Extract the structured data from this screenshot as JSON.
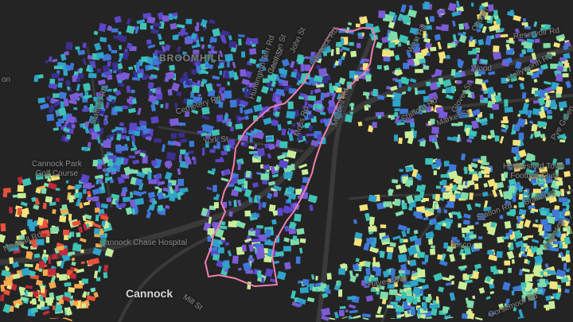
{
  "map": {
    "basemap": "dark",
    "boundary_color": "#f07fae",
    "color_ramp": [
      "#3b2f8f",
      "#5b47c9",
      "#7b5cd6",
      "#3f78d8",
      "#2fa3c8",
      "#3fc3b6",
      "#7fdcaa",
      "#c9ee9a",
      "#f6e27a",
      "#f9a94e",
      "#e8513a",
      "#c02a3a"
    ],
    "labels": {
      "broomhill": "BROOMHILL",
      "cannock": "Cannock",
      "cannock_park_golf": "Cannock Park\nGolf Course",
      "cannock_chase_hospital": "Cannock Chase Hospital",
      "hednesford_town": "Hednesford Town\nFootball Club",
      "tesco": "Tesco",
      "hayes_way": "Hayes Way",
      "wood_rd": "Wood",
      "reservoir_rd": "Reservoir Rd",
      "hollyworth_rd": "Hollyworth Rd",
      "church_st": "Church",
      "stafford_rd": "Stafford Rd",
      "cemetery_rd": "Cemetery Rd",
      "huntington_terr_rd": "Huntington Terr Rd",
      "marston_st": "Marston St",
      "john_st": "John St",
      "cecil_st": "Cecil St",
      "cannock_rd": "Cannock Rd",
      "moss_rd": "Moss Rd",
      "mitchell_rd": "Mitchell Rd",
      "york_st": "York St",
      "newhall_rd": "Newhall Rd",
      "mill_st": "Mill St",
      "stafford_rd_2": "Stafford Rd",
      "glover_st": "Glover St",
      "west_hill": "West Hill",
      "gorsemoor_rd": "Gorsemoor Rd",
      "anglesey": "Anglesey",
      "pye_green": "Pye Green",
      "bradbury": "Bradbury",
      "market_st": "Market St",
      "station_rd": "Station Rd",
      "on": "on"
    }
  }
}
